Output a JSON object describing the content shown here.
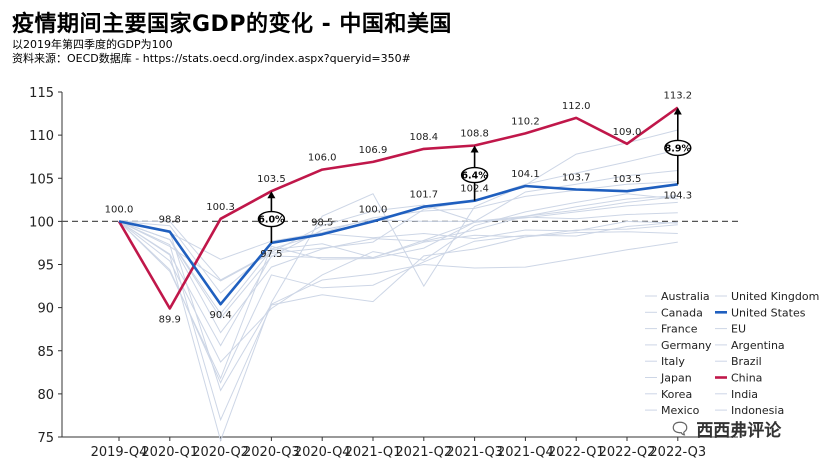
{
  "header": {
    "title": "疫情期间主要国家GDP的变化 - 中国和美国",
    "subtitle": "以2019年第四季度的GDP为100",
    "source": "资料来源：OECD数据库 - https://stats.oecd.org/index.aspx?queryid=350#"
  },
  "watermark": {
    "text": "西西弗评论",
    "icon": "wechat-icon"
  },
  "colors": {
    "china": "#c0174a",
    "united_states": "#1f5fbf",
    "others": "#cdd6e6",
    "baseline": "#555555"
  },
  "chart_data": {
    "type": "line",
    "title": "疫情期间主要国家GDP的变化 - 中国和美国",
    "subtitle": "以2019年第四季度的GDP为100",
    "categories": [
      "2019-Q4",
      "2020-Q1",
      "2020-Q2",
      "2020-Q3",
      "2020-Q4",
      "2021-Q1",
      "2021-Q2",
      "2021-Q3",
      "2021-Q4",
      "2022-Q1",
      "2022-Q2",
      "2022-Q3"
    ],
    "ylim": [
      75,
      115
    ],
    "yticks": [
      75,
      80,
      85,
      90,
      95,
      100,
      105,
      110,
      115
    ],
    "reference_line": 100,
    "legend_position": "bottom-right",
    "highlighted_series": [
      {
        "name": "China",
        "values": [
          100.0,
          89.9,
          100.3,
          103.5,
          106.0,
          106.9,
          108.4,
          108.8,
          110.2,
          112.0,
          109.0,
          113.2
        ],
        "labels": [
          "100.0",
          "89.9",
          "100.3",
          "103.5",
          "106.0",
          "106.9",
          "108.4",
          "108.8",
          "110.2",
          "112.0",
          "109.0",
          "113.2"
        ]
      },
      {
        "name": "United States",
        "values": [
          100.0,
          98.8,
          90.4,
          97.5,
          98.5,
          100.0,
          101.7,
          102.4,
          104.1,
          103.7,
          103.5,
          104.3
        ],
        "labels": [
          "",
          "98.8",
          "90.4",
          "97.5",
          "98.5",
          "100.0",
          "101.7",
          "102.4",
          "104.1",
          "103.7",
          "103.5",
          "104.3"
        ]
      }
    ],
    "background_series": [
      {
        "name": "Australia",
        "values": [
          100,
          100.0,
          93.2,
          96.4,
          99.5,
          101.2,
          101.9,
          100.0,
          103.4,
          104.3,
          105.3,
          105.9
        ]
      },
      {
        "name": "Canada",
        "values": [
          100,
          97.9,
          87.1,
          94.7,
          96.8,
          98.0,
          97.7,
          99.0,
          100.6,
          101.3,
          102.2,
          102.9
        ]
      },
      {
        "name": "France",
        "values": [
          100,
          94.2,
          81.8,
          97.1,
          95.6,
          95.7,
          96.9,
          99.9,
          100.5,
          100.3,
          100.8,
          101.0
        ]
      },
      {
        "name": "Germany",
        "values": [
          100,
          97.9,
          89.3,
          96.7,
          97.4,
          95.8,
          97.6,
          98.4,
          98.2,
          99.0,
          99.1,
          99.6
        ]
      },
      {
        "name": "Italy",
        "values": [
          100,
          94.4,
          81.3,
          93.8,
          92.3,
          92.6,
          95.3,
          97.7,
          98.4,
          98.3,
          99.4,
          99.9
        ]
      },
      {
        "name": "Japan",
        "values": [
          100,
          99.5,
          91.7,
          96.8,
          98.6,
          98.1,
          98.6,
          98.0,
          99.0,
          98.9,
          100.0,
          99.8
        ]
      },
      {
        "name": "Korea",
        "values": [
          100,
          98.7,
          95.6,
          97.7,
          98.7,
          100.4,
          101.2,
          101.5,
          102.9,
          103.6,
          104.3,
          104.6
        ]
      },
      {
        "name": "Mexico",
        "values": [
          100,
          98.8,
          80.4,
          90.4,
          93.2,
          93.9,
          95.0,
          94.6,
          94.7,
          95.7,
          96.7,
          97.6
        ]
      },
      {
        "name": "United Kingdom",
        "values": [
          100,
          97.3,
          77.0,
          90.3,
          91.5,
          90.7,
          96.0,
          96.8,
          98.2,
          98.7,
          98.8,
          98.6
        ]
      },
      {
        "name": "EU",
        "values": [
          100,
          96.2,
          85.6,
          96.0,
          95.8,
          95.8,
          97.8,
          99.9,
          100.4,
          101.1,
          101.8,
          102.2
        ]
      },
      {
        "name": "Argentina",
        "values": [
          100,
          95.4,
          83.7,
          89.9,
          93.8,
          96.5,
          95.5,
          99.5,
          101.1,
          102.2,
          103.2,
          102.6
        ]
      },
      {
        "name": "Brazil",
        "values": [
          100,
          97.9,
          88.8,
          95.9,
          99.0,
          100.2,
          100.0,
          100.0,
          100.6,
          101.7,
          102.6,
          103.0
        ]
      },
      {
        "name": "India",
        "values": [
          100,
          96.1,
          74.6,
          90.6,
          100.6,
          103.2,
          92.5,
          101.7,
          104.2,
          107.8,
          109.1,
          110.6
        ]
      },
      {
        "name": "Indonesia",
        "values": [
          100,
          97.1,
          93.1,
          96.3,
          96.9,
          97.6,
          101.4,
          102.4,
          104.3,
          105.6,
          106.9,
          108.3
        ]
      }
    ],
    "annotations": [
      {
        "at": "2020-Q3",
        "from": 97.5,
        "to": 103.5,
        "label": "6.0%"
      },
      {
        "at": "2021-Q3",
        "from": 102.4,
        "to": 108.8,
        "label": "6.4%"
      },
      {
        "at": "2022-Q3",
        "from": 104.3,
        "to": 113.2,
        "label": "8.9%"
      }
    ],
    "legend": [
      {
        "name": "Australia",
        "style": "others"
      },
      {
        "name": "United Kingdom",
        "style": "others"
      },
      {
        "name": "Canada",
        "style": "others"
      },
      {
        "name": "United States",
        "style": "united_states"
      },
      {
        "name": "France",
        "style": "others"
      },
      {
        "name": "EU",
        "style": "others"
      },
      {
        "name": "Germany",
        "style": "others"
      },
      {
        "name": "Argentina",
        "style": "others"
      },
      {
        "name": "Italy",
        "style": "others"
      },
      {
        "name": "Brazil",
        "style": "others"
      },
      {
        "name": "Japan",
        "style": "others"
      },
      {
        "name": "China",
        "style": "china"
      },
      {
        "name": "Korea",
        "style": "others"
      },
      {
        "name": "India",
        "style": "others"
      },
      {
        "name": "Mexico",
        "style": "others"
      },
      {
        "name": "Indonesia",
        "style": "others"
      }
    ]
  }
}
